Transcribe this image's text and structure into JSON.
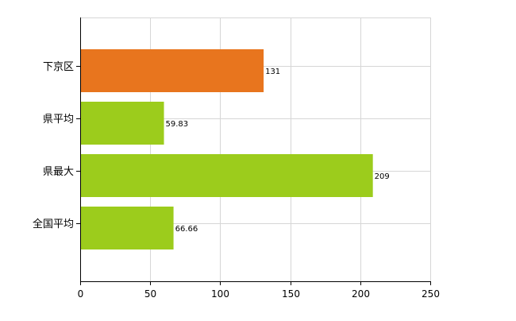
{
  "chart_data": {
    "type": "bar",
    "orientation": "horizontal",
    "categories": [
      "下京区",
      "県平均",
      "県最大",
      "全国平均"
    ],
    "values": [
      131,
      59.83,
      209,
      66.66
    ],
    "value_labels": [
      "131",
      "59.83",
      "209",
      "66.66"
    ],
    "colors": [
      "#e8751e",
      "#9ccc1c",
      "#9ccc1c",
      "#9ccc1c"
    ],
    "xlim": [
      0,
      250
    ],
    "xticks": [
      0,
      50,
      100,
      150,
      200,
      250
    ],
    "xtick_labels": [
      "0",
      "50",
      "100",
      "150",
      "200",
      "250"
    ],
    "grid": true,
    "legend": "none",
    "title": "",
    "xlabel": "",
    "ylabel": ""
  }
}
